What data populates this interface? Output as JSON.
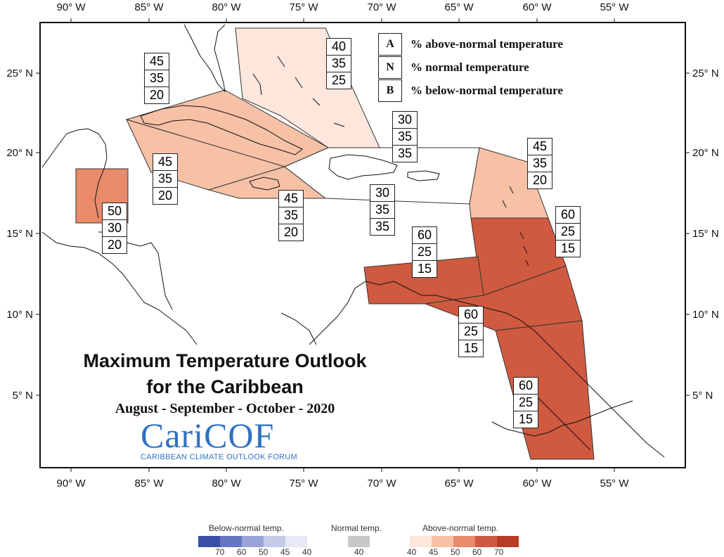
{
  "title": {
    "line1": "Maximum Temperature Outlook",
    "line2": "for the Caribbean",
    "line3": "August - September - October - 2020"
  },
  "logo": {
    "name": "CariCOF",
    "subtitle": "CARIBBEAN CLIMATE OUTLOOK FORUM"
  },
  "axes": {
    "lon_top": [
      "90° W",
      "85° W",
      "80° W",
      "75° W",
      "70° W",
      "65° W",
      "60° W",
      "55° W"
    ],
    "lon_bottom": [
      "90° W",
      "85° W",
      "80° W",
      "75° W",
      "70° W",
      "65° W",
      "60° W",
      "55° W"
    ],
    "lat_left": [
      "25° N",
      "20° N",
      "15° N",
      "10° N",
      "5° N"
    ],
    "lat_right": [
      "25° N",
      "20° N",
      "15° N",
      "10° N",
      "5° N"
    ]
  },
  "key": {
    "A": {
      "letter": "A",
      "text": "% above-normal temperature"
    },
    "N": {
      "letter": "N",
      "text": "% normal temperature"
    },
    "B": {
      "letter": "B",
      "text": "% below-normal temperature"
    }
  },
  "regions": {
    "bahamas": {
      "A": "40",
      "N": "35",
      "B": "25",
      "fill": "#fde6dc"
    },
    "cuba": {
      "A": "45",
      "N": "35",
      "B": "20",
      "fill": "#f7c1a6"
    },
    "cayman_jamaica": {
      "A": "45",
      "N": "35",
      "B": "20",
      "fill": "#f7c1a6"
    },
    "jamaica_south": {
      "A": "45",
      "N": "35",
      "B": "20",
      "fill": "#f7c1a6"
    },
    "hispaniola_north": {
      "A": "30",
      "N": "35",
      "B": "35",
      "fill": "#ffffff"
    },
    "hispaniola_south": {
      "A": "30",
      "N": "35",
      "B": "35",
      "fill": "#ffffff"
    },
    "leeward": {
      "A": "45",
      "N": "35",
      "B": "20",
      "fill": "#f7c1a6"
    },
    "windward": {
      "A": "60",
      "N": "25",
      "B": "15",
      "fill": "#cf5a40"
    },
    "abc_islands": {
      "A": "60",
      "N": "25",
      "B": "15",
      "fill": "#cf5a40"
    },
    "trinidad": {
      "A": "60",
      "N": "25",
      "B": "15",
      "fill": "#cf5a40"
    },
    "guianas": {
      "A": "60",
      "N": "25",
      "B": "15",
      "fill": "#cf5a40"
    },
    "belize": {
      "A": "50",
      "N": "30",
      "B": "20",
      "fill": "#e98a6a"
    }
  },
  "scale": {
    "below_label": "Below-normal temp.",
    "normal_label": "Normal temp.",
    "above_label": "Above-normal temp.",
    "below_ticks": [
      "70",
      "60",
      "50",
      "45",
      "40"
    ],
    "normal_ticks": [
      "40"
    ],
    "above_ticks": [
      "40",
      "45",
      "50",
      "60",
      "70"
    ],
    "below_colors": [
      "#3b4fa6",
      "#6676c2",
      "#9aa3d8",
      "#c6cbe9",
      "#e7e9f7"
    ],
    "normal_color": "#c8c8c8",
    "above_colors": [
      "#fde6dc",
      "#f7c1a6",
      "#e98a6a",
      "#cf5a40",
      "#b83d28"
    ]
  }
}
